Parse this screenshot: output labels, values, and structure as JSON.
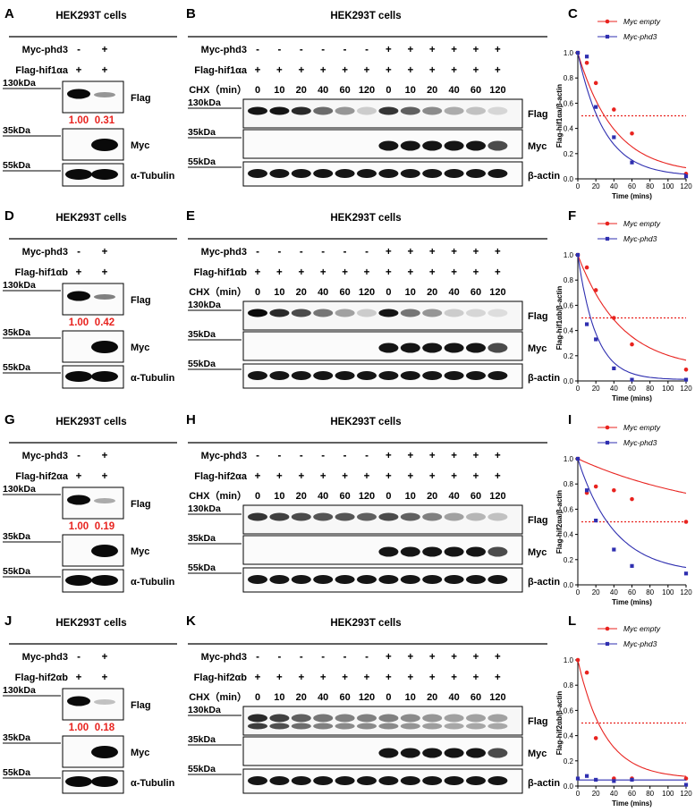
{
  "cell_title": "HEK293T cells",
  "labels": {
    "myc_phd3": "Myc-phd3",
    "chx": "CHX（min）",
    "flag": "Flag",
    "myc": "Myc",
    "tubulin": "α-Tubulin",
    "actin": "β-actin",
    "kda130": "130kDa",
    "kda35": "35kDa",
    "kda55": "55kDa",
    "plus": "+",
    "minus": "-"
  },
  "legend": {
    "empty": "Myc empty",
    "phd3": "Myc-phd3"
  },
  "axes": {
    "xlabel": "Time (mins)",
    "xticks": [
      "0",
      "20",
      "40",
      "60",
      "80",
      "100",
      "120"
    ],
    "yticks": [
      "0.0",
      "0.2",
      "0.4",
      "0.6",
      "0.8",
      "1.0"
    ]
  },
  "chx_times": [
    "0",
    "10",
    "20",
    "40",
    "60",
    "120",
    "0",
    "10",
    "20",
    "40",
    "60",
    "120"
  ],
  "rows": [
    {
      "letters": [
        "A",
        "B",
        "C"
      ],
      "flag_label": "Flag-hif1αa",
      "ratios": [
        "1.00",
        "0.31"
      ],
      "ylabel": "Flag-hif1αa/β-actin",
      "left_flag": [
        1.0,
        0.35
      ],
      "flag_intensity": [
        0.95,
        0.95,
        0.85,
        0.55,
        0.35,
        0.1,
        0.8,
        0.6,
        0.4,
        0.25,
        0.15,
        0.05
      ]
    },
    {
      "letters": [
        "D",
        "E",
        "F"
      ],
      "flag_label": "Flag-hif1αb",
      "ratios": [
        "1.00",
        "0.42"
      ],
      "ylabel": "Flag-hif1αb/β-actin",
      "left_flag": [
        1.0,
        0.45
      ],
      "flag_intensity": [
        1.0,
        0.85,
        0.7,
        0.5,
        0.3,
        0.1,
        0.95,
        0.5,
        0.35,
        0.1,
        0.05,
        0.02
      ]
    },
    {
      "letters": [
        "G",
        "H",
        "I"
      ],
      "flag_label": "Flag-hif2αa",
      "ratios": [
        "1.00",
        "0.19"
      ],
      "ylabel": "Flag-hif2αa/β-actin",
      "left_flag": [
        1.0,
        0.25
      ],
      "flag_intensity": [
        0.8,
        0.75,
        0.7,
        0.65,
        0.65,
        0.6,
        0.7,
        0.6,
        0.45,
        0.3,
        0.2,
        0.15
      ]
    },
    {
      "letters": [
        "J",
        "K",
        "L"
      ],
      "flag_label": "Flag-hif2αb",
      "ratios": [
        "1.00",
        "0.18"
      ],
      "ylabel": "Flag-hif2αb/β-actin",
      "left_flag": [
        1.0,
        0.15
      ],
      "flag_intensity": [
        0.85,
        0.75,
        0.6,
        0.5,
        0.45,
        0.45,
        0.45,
        0.4,
        0.35,
        0.3,
        0.3,
        0.3
      ]
    }
  ],
  "chart_data": [
    {
      "type": "scatter",
      "panel": "C",
      "xlabel": "Time (mins)",
      "ylabel": "Flag-hif1αa/β-actin",
      "xlim": [
        0,
        120
      ],
      "ylim": [
        0,
        1.0
      ],
      "threshold": 0.5,
      "threshold_color": "#e8231f",
      "series": [
        {
          "name": "Myc empty",
          "color": "#e8231f",
          "marker": "circle",
          "x": [
            0,
            10,
            20,
            40,
            60,
            120
          ],
          "y": [
            1.0,
            0.92,
            0.76,
            0.55,
            0.36,
            0.04
          ]
        },
        {
          "name": "Myc-phd3",
          "color": "#2f2fb0",
          "marker": "square",
          "x": [
            0,
            10,
            20,
            40,
            60,
            120
          ],
          "y": [
            1.0,
            0.97,
            0.57,
            0.33,
            0.13,
            0.02
          ]
        }
      ]
    },
    {
      "type": "scatter",
      "panel": "F",
      "xlabel": "Time (mins)",
      "ylabel": "Flag-hif1αb/β-actin",
      "xlim": [
        0,
        120
      ],
      "ylim": [
        0,
        1.0
      ],
      "threshold": 0.5,
      "threshold_color": "#e8231f",
      "series": [
        {
          "name": "Myc empty",
          "color": "#e8231f",
          "marker": "circle",
          "x": [
            0,
            10,
            20,
            40,
            60,
            120
          ],
          "y": [
            1.0,
            0.9,
            0.72,
            0.5,
            0.29,
            0.09
          ]
        },
        {
          "name": "Myc-phd3",
          "color": "#2f2fb0",
          "marker": "square",
          "x": [
            0,
            10,
            20,
            40,
            60,
            120
          ],
          "y": [
            1.0,
            0.45,
            0.33,
            0.1,
            0.01,
            0.01
          ]
        }
      ]
    },
    {
      "type": "scatter",
      "panel": "I",
      "xlabel": "Time (mins)",
      "ylabel": "Flag-hif2αa/β-actin",
      "xlim": [
        0,
        120
      ],
      "ylim": [
        0,
        1.0
      ],
      "threshold": 0.5,
      "threshold_color": "#e8231f",
      "series": [
        {
          "name": "Myc empty",
          "color": "#e8231f",
          "marker": "circle",
          "x": [
            0,
            10,
            20,
            40,
            60,
            120
          ],
          "y": [
            1.0,
            0.73,
            0.78,
            0.75,
            0.68,
            0.5
          ]
        },
        {
          "name": "Myc-phd3",
          "color": "#2f2fb0",
          "marker": "square",
          "x": [
            0,
            10,
            20,
            40,
            60,
            120
          ],
          "y": [
            1.0,
            0.75,
            0.51,
            0.28,
            0.15,
            0.09
          ]
        }
      ]
    },
    {
      "type": "scatter",
      "panel": "L",
      "xlabel": "Time (mins)",
      "ylabel": "Flag-hif2αb/β-actin",
      "xlim": [
        0,
        120
      ],
      "ylim": [
        0,
        1.0
      ],
      "threshold": 0.5,
      "threshold_color": "#e8231f",
      "series": [
        {
          "name": "Myc empty",
          "color": "#e8231f",
          "marker": "circle",
          "x": [
            0,
            10,
            20,
            40,
            60,
            120
          ],
          "y": [
            1.0,
            0.9,
            0.38,
            0.06,
            0.06,
            0.06
          ]
        },
        {
          "name": "Myc-phd3",
          "color": "#2f2fb0",
          "marker": "square",
          "x": [
            0,
            10,
            20,
            40,
            60,
            120
          ],
          "y": [
            0.06,
            0.08,
            0.05,
            0.04,
            0.05,
            0.01
          ]
        }
      ]
    }
  ]
}
